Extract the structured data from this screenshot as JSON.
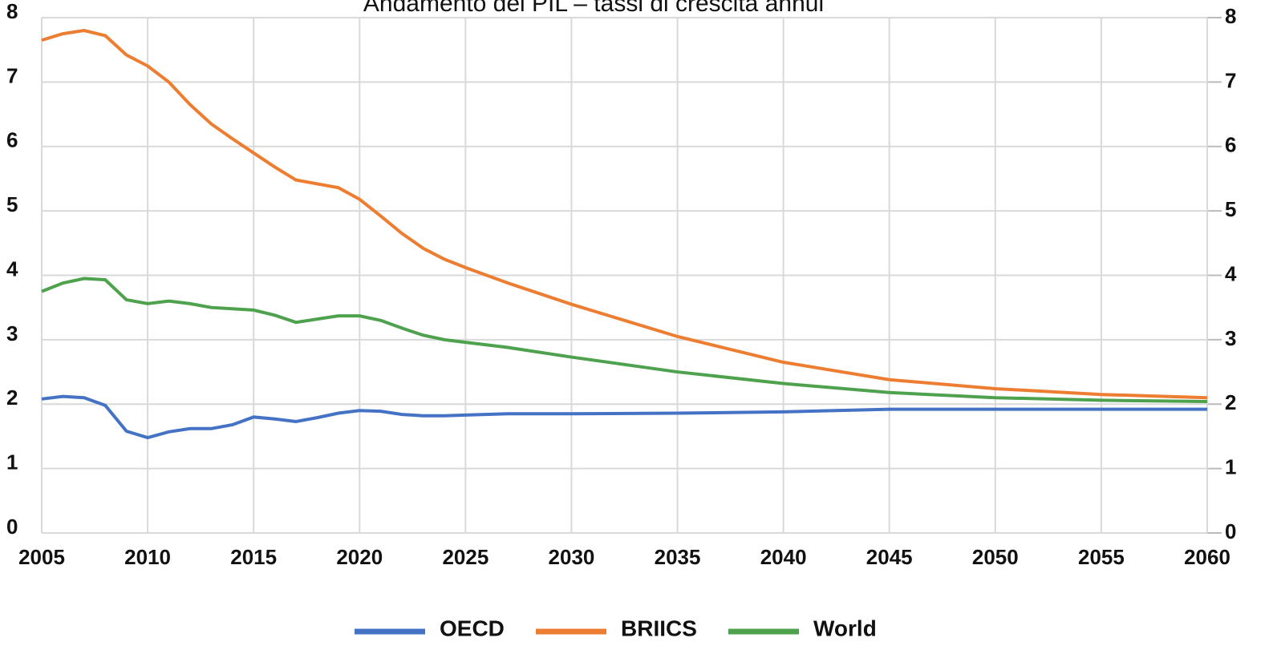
{
  "chart_data": {
    "type": "line",
    "title": "Andamento del PIL – tassi di crescita annui",
    "x": [
      2005,
      2006,
      2007,
      2008,
      2009,
      2010,
      2011,
      2012,
      2013,
      2014,
      2015,
      2016,
      2017,
      2018,
      2019,
      2020,
      2021,
      2022,
      2023,
      2024,
      2025,
      2027,
      2030,
      2035,
      2040,
      2045,
      2050,
      2055,
      2060
    ],
    "series": [
      {
        "name": "OECD",
        "color": "#4472c4",
        "values": [
          2.08,
          2.12,
          2.1,
          1.98,
          1.58,
          1.48,
          1.57,
          1.62,
          1.62,
          1.68,
          1.8,
          1.77,
          1.73,
          1.79,
          1.86,
          1.9,
          1.89,
          1.84,
          1.82,
          1.82,
          1.83,
          1.85,
          1.85,
          1.86,
          1.88,
          1.92,
          1.92,
          1.92,
          1.92
        ]
      },
      {
        "name": "BRIICS",
        "color": "#ed7d31",
        "values": [
          7.65,
          7.75,
          7.8,
          7.72,
          7.42,
          7.25,
          7.0,
          6.65,
          6.35,
          6.12,
          5.9,
          5.68,
          5.48,
          5.42,
          5.36,
          5.18,
          4.92,
          4.65,
          4.42,
          4.25,
          4.12,
          3.88,
          3.55,
          3.05,
          2.65,
          2.38,
          2.24,
          2.15,
          2.1
        ]
      },
      {
        "name": "World",
        "color": "#4ea24e",
        "values": [
          3.75,
          3.88,
          3.95,
          3.93,
          3.62,
          3.56,
          3.6,
          3.56,
          3.5,
          3.48,
          3.46,
          3.38,
          3.27,
          3.32,
          3.37,
          3.37,
          3.3,
          3.18,
          3.07,
          3.0,
          2.96,
          2.88,
          2.73,
          2.5,
          2.32,
          2.18,
          2.1,
          2.06,
          2.04
        ]
      }
    ],
    "xlim": [
      2005,
      2060
    ],
    "xticks": [
      2005,
      2010,
      2015,
      2020,
      2025,
      2030,
      2035,
      2040,
      2045,
      2050,
      2055,
      2060
    ],
    "ylim": [
      0,
      8
    ],
    "yticks": [
      0,
      1,
      2,
      3,
      4,
      5,
      6,
      7,
      8
    ],
    "y2lim": [
      0,
      8
    ],
    "y2ticks": [
      0,
      1,
      2,
      3,
      4,
      5,
      6,
      7,
      8
    ],
    "grid": true,
    "legend": "bottom"
  }
}
